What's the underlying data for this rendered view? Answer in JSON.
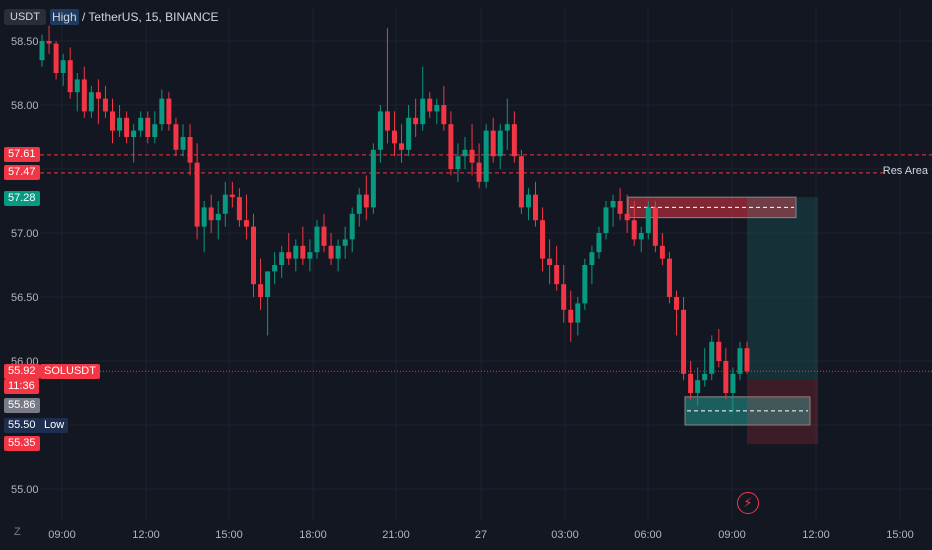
{
  "header": {
    "currency": "USDT",
    "highlight": "High",
    "title": "/ TetherUS, 15, BINANCE"
  },
  "badges": {
    "p5761": "57.61",
    "p5747": "57.47",
    "p5728": "57.28",
    "current_price": "55.92",
    "countdown": "11:36",
    "p5586": "55.86",
    "low_price": "55.50",
    "p5535": "55.35",
    "symbol": "SOLUSDT",
    "low": "Low"
  },
  "res_area_label": "Res Area",
  "z_button": "Z",
  "bolt_icon": "⚡",
  "colors": {
    "background": "#131722",
    "up": "#26a69a",
    "down": "#f23645",
    "grid": "#1e2230"
  },
  "chart_data": {
    "type": "candlestick",
    "symbol": "SOLUSDT",
    "interval": "15",
    "exchange": "BINANCE",
    "y_ticks": [
      55.0,
      55.5,
      56.0,
      56.5,
      57.0,
      57.5,
      58.0,
      58.5
    ],
    "x_ticks": [
      "09:00",
      "12:00",
      "15:00",
      "18:00",
      "21:00",
      "27",
      "03:00",
      "06:00",
      "09:00",
      "12:00",
      "15:00"
    ],
    "price_range": [
      54.75,
      58.62
    ],
    "horizontal_lines": [
      {
        "price": 57.61,
        "style": "dashed",
        "color": "#f23645"
      },
      {
        "price": 57.47,
        "style": "dashed",
        "color": "#f23645",
        "label": "Res Area"
      },
      {
        "price": 55.92,
        "style": "dotted",
        "color": "#f23645"
      }
    ],
    "zones": [
      {
        "name": "resistance-zone",
        "price_top": 57.28,
        "price_bottom": 57.12,
        "color": "#f23645"
      },
      {
        "name": "support-zone",
        "price_top": 55.72,
        "price_bottom": 55.5,
        "color": "#26a69a"
      },
      {
        "name": "target-zone",
        "price_top": 57.28,
        "price_bottom": 55.86,
        "color": "#26a69a"
      },
      {
        "name": "stop-zone",
        "price_top": 55.86,
        "price_bottom": 55.35,
        "color": "#f23645"
      }
    ],
    "candles": [
      [
        58.35,
        58.55,
        58.3,
        58.5
      ],
      [
        58.5,
        58.62,
        58.4,
        58.48
      ],
      [
        58.48,
        58.5,
        58.2,
        58.25
      ],
      [
        58.25,
        58.4,
        58.15,
        58.35
      ],
      [
        58.35,
        58.45,
        58.05,
        58.1
      ],
      [
        58.1,
        58.25,
        57.95,
        58.2
      ],
      [
        58.2,
        58.3,
        57.9,
        57.95
      ],
      [
        57.95,
        58.15,
        57.9,
        58.1
      ],
      [
        58.1,
        58.2,
        57.85,
        58.05
      ],
      [
        58.05,
        58.15,
        57.9,
        57.95
      ],
      [
        57.95,
        58.05,
        57.7,
        57.8
      ],
      [
        57.8,
        58.0,
        57.75,
        57.9
      ],
      [
        57.9,
        57.95,
        57.7,
        57.75
      ],
      [
        57.75,
        57.85,
        57.55,
        57.8
      ],
      [
        57.8,
        57.95,
        57.75,
        57.9
      ],
      [
        57.9,
        57.95,
        57.7,
        57.75
      ],
      [
        57.75,
        57.95,
        57.7,
        57.85
      ],
      [
        57.85,
        58.12,
        57.8,
        58.05
      ],
      [
        58.05,
        58.1,
        57.8,
        57.85
      ],
      [
        57.85,
        57.9,
        57.6,
        57.65
      ],
      [
        57.65,
        57.85,
        57.6,
        57.75
      ],
      [
        57.75,
        57.85,
        57.45,
        57.55
      ],
      [
        57.55,
        57.7,
        56.95,
        57.05
      ],
      [
        57.05,
        57.25,
        56.85,
        57.2
      ],
      [
        57.2,
        57.3,
        57.0,
        57.1
      ],
      [
        57.1,
        57.25,
        56.95,
        57.15
      ],
      [
        57.15,
        57.4,
        57.05,
        57.3
      ],
      [
        57.3,
        57.4,
        57.2,
        57.28
      ],
      [
        57.28,
        57.35,
        57.05,
        57.1
      ],
      [
        57.1,
        57.3,
        56.95,
        57.05
      ],
      [
        57.05,
        57.15,
        56.5,
        56.6
      ],
      [
        56.6,
        56.8,
        56.4,
        56.5
      ],
      [
        56.5,
        56.7,
        56.2,
        56.7
      ],
      [
        56.7,
        56.85,
        56.6,
        56.75
      ],
      [
        56.75,
        56.9,
        56.65,
        56.85
      ],
      [
        56.85,
        57.0,
        56.75,
        56.8
      ],
      [
        56.8,
        56.95,
        56.7,
        56.9
      ],
      [
        56.9,
        57.05,
        56.75,
        56.8
      ],
      [
        56.8,
        56.95,
        56.7,
        56.85
      ],
      [
        56.85,
        57.1,
        56.8,
        57.05
      ],
      [
        57.05,
        57.15,
        56.85,
        56.9
      ],
      [
        56.9,
        57.0,
        56.75,
        56.8
      ],
      [
        56.8,
        56.95,
        56.7,
        56.9
      ],
      [
        56.9,
        57.05,
        56.8,
        56.95
      ],
      [
        56.95,
        57.2,
        56.85,
        57.15
      ],
      [
        57.15,
        57.35,
        57.05,
        57.3
      ],
      [
        57.3,
        57.45,
        57.1,
        57.2
      ],
      [
        57.2,
        57.7,
        57.15,
        57.65
      ],
      [
        57.65,
        58.0,
        57.55,
        57.95
      ],
      [
        57.95,
        58.6,
        57.7,
        57.8
      ],
      [
        57.8,
        57.95,
        57.6,
        57.7
      ],
      [
        57.7,
        57.85,
        57.55,
        57.65
      ],
      [
        57.65,
        58.0,
        57.6,
        57.9
      ],
      [
        57.9,
        58.05,
        57.75,
        57.85
      ],
      [
        57.85,
        58.3,
        57.8,
        58.05
      ],
      [
        58.05,
        58.1,
        57.9,
        57.95
      ],
      [
        57.95,
        58.05,
        57.85,
        58.0
      ],
      [
        58.0,
        58.15,
        57.8,
        57.85
      ],
      [
        57.85,
        57.95,
        57.45,
        57.5
      ],
      [
        57.5,
        57.7,
        57.4,
        57.6
      ],
      [
        57.6,
        57.75,
        57.5,
        57.65
      ],
      [
        57.65,
        57.85,
        57.45,
        57.55
      ],
      [
        57.55,
        57.7,
        57.35,
        57.4
      ],
      [
        57.4,
        57.85,
        57.35,
        57.8
      ],
      [
        57.8,
        57.9,
        57.55,
        57.6
      ],
      [
        57.6,
        57.85,
        57.5,
        57.8
      ],
      [
        57.8,
        58.05,
        57.65,
        57.85
      ],
      [
        57.85,
        57.95,
        57.55,
        57.6
      ],
      [
        57.6,
        57.65,
        57.15,
        57.2
      ],
      [
        57.2,
        57.35,
        57.1,
        57.3
      ],
      [
        57.3,
        57.4,
        57.05,
        57.1
      ],
      [
        57.1,
        57.2,
        56.7,
        56.8
      ],
      [
        56.8,
        56.95,
        56.6,
        56.75
      ],
      [
        56.75,
        56.9,
        56.55,
        56.6
      ],
      [
        56.6,
        56.75,
        56.3,
        56.4
      ],
      [
        56.4,
        56.55,
        56.15,
        56.3
      ],
      [
        56.3,
        56.5,
        56.2,
        56.45
      ],
      [
        56.45,
        56.8,
        56.4,
        56.75
      ],
      [
        56.75,
        56.9,
        56.6,
        56.85
      ],
      [
        56.85,
        57.05,
        56.8,
        57.0
      ],
      [
        57.0,
        57.25,
        56.95,
        57.2
      ],
      [
        57.2,
        57.3,
        57.05,
        57.25
      ],
      [
        57.25,
        57.35,
        57.1,
        57.15
      ],
      [
        57.15,
        57.3,
        57.0,
        57.1
      ],
      [
        57.1,
        57.25,
        56.9,
        56.95
      ],
      [
        56.95,
        57.05,
        56.85,
        57.0
      ],
      [
        57.0,
        57.25,
        56.95,
        57.2
      ],
      [
        57.2,
        57.25,
        56.85,
        56.9
      ],
      [
        56.9,
        57.0,
        56.75,
        56.8
      ],
      [
        56.8,
        56.85,
        56.45,
        56.5
      ],
      [
        56.5,
        56.55,
        56.2,
        56.4
      ],
      [
        56.4,
        56.5,
        55.85,
        55.9
      ],
      [
        55.9,
        56.0,
        55.7,
        55.75
      ],
      [
        55.75,
        55.95,
        55.65,
        55.85
      ],
      [
        55.85,
        56.1,
        55.8,
        55.9
      ],
      [
        55.9,
        56.2,
        55.85,
        56.15
      ],
      [
        56.15,
        56.25,
        55.95,
        56.0
      ],
      [
        56.0,
        56.1,
        55.7,
        55.75
      ],
      [
        55.75,
        55.95,
        55.6,
        55.9
      ],
      [
        55.9,
        56.15,
        55.85,
        56.1
      ],
      [
        56.1,
        56.15,
        55.9,
        55.92
      ]
    ]
  }
}
